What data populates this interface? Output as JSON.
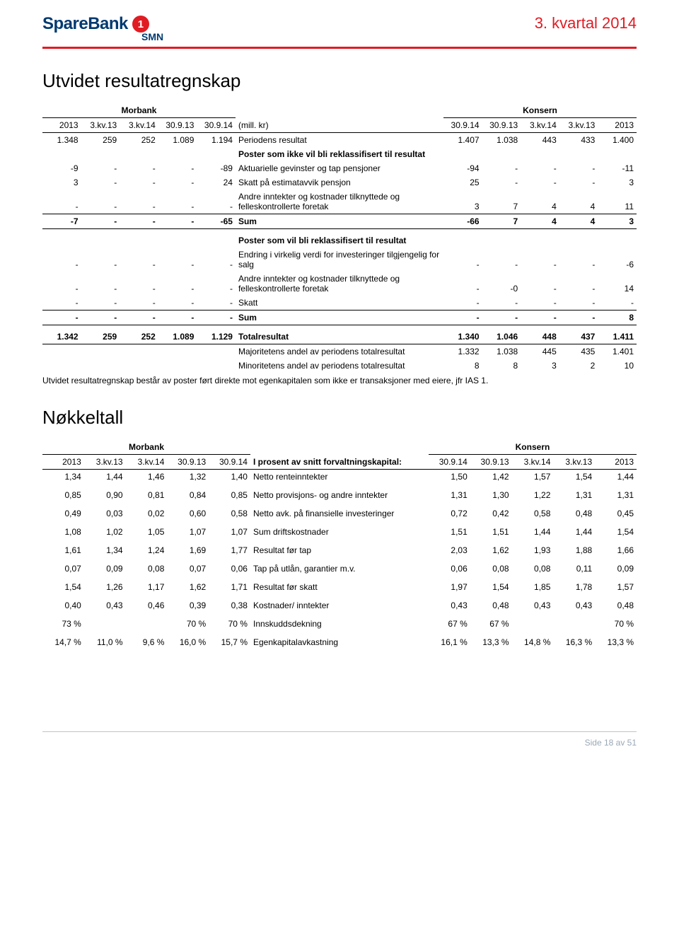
{
  "header": {
    "brand_main": "SpareBank",
    "brand_num": "1",
    "brand_sub": "SMN",
    "report_title": "3. kvartal 2014"
  },
  "section1_title": "Utvidet resultatregnskap",
  "table1": {
    "group_left": "Morbank",
    "group_right": "Konsern",
    "cols_left": [
      "2013",
      "3.kv.13",
      "3.kv.14",
      "30.9.13",
      "30.9.14"
    ],
    "label_col": "(mill. kr)",
    "cols_right": [
      "30.9.14",
      "30.9.13",
      "3.kv.14",
      "3.kv.13",
      "2013"
    ],
    "rows": [
      {
        "l": [
          "1.348",
          "259",
          "252",
          "1.089",
          "1.194"
        ],
        "label": "Periodens resultat",
        "r": [
          "1.407",
          "1.038",
          "443",
          "433",
          "1.400"
        ]
      },
      {
        "l": [
          "",
          "",
          "",
          "",
          ""
        ],
        "label": "Poster som ikke vil bli reklassifisert til resultat",
        "r": [
          "",
          "",
          "",
          "",
          ""
        ],
        "bold": true
      },
      {
        "l": [
          "-9",
          "-",
          "-",
          "-",
          "-89"
        ],
        "label": "Aktuarielle gevinster og tap pensjoner",
        "r": [
          "-94",
          "-",
          "-",
          "-",
          "-11"
        ]
      },
      {
        "l": [
          "3",
          "-",
          "-",
          "-",
          "24"
        ],
        "label": "Skatt på estimatavvik pensjon",
        "r": [
          "25",
          "-",
          "-",
          "-",
          "3"
        ]
      },
      {
        "l": [
          "-",
          "-",
          "-",
          "-",
          "-"
        ],
        "label": "Andre inntekter og kostnader tilknyttede og felleskontrollerte foretak",
        "r": [
          "3",
          "7",
          "4",
          "4",
          "11"
        ]
      },
      {
        "l": [
          "-7",
          "-",
          "-",
          "-",
          "-65"
        ],
        "label": "Sum",
        "r": [
          "-66",
          "7",
          "4",
          "4",
          "3"
        ],
        "bold": true,
        "bt": true,
        "bb": true
      },
      {
        "l": [
          "",
          "",
          "",
          "",
          ""
        ],
        "label": "",
        "r": [
          "",
          "",
          "",
          "",
          ""
        ]
      },
      {
        "l": [
          "",
          "",
          "",
          "",
          ""
        ],
        "label": "Poster som vil bli reklassifisert til resultat",
        "r": [
          "",
          "",
          "",
          "",
          ""
        ],
        "bold": true
      },
      {
        "l": [
          "-",
          "-",
          "-",
          "-",
          "-"
        ],
        "label": "Endring i virkelig verdi for investeringer tilgjengelig for salg",
        "r": [
          "-",
          "-",
          "-",
          "-",
          "-6"
        ]
      },
      {
        "l": [
          "-",
          "-",
          "-",
          "-",
          "-"
        ],
        "label": "Andre inntekter og kostnader tilknyttede og felleskontrollerte foretak",
        "r": [
          "-",
          "-0",
          "-",
          "-",
          "14"
        ]
      },
      {
        "l": [
          "-",
          "-",
          "-",
          "-",
          "-"
        ],
        "label": "Skatt",
        "r": [
          "-",
          "-",
          "-",
          "-",
          "-"
        ]
      },
      {
        "l": [
          "-",
          "-",
          "-",
          "-",
          "-"
        ],
        "label": "Sum",
        "r": [
          "-",
          "-",
          "-",
          "-",
          "8"
        ],
        "bold": true,
        "bt": true,
        "bb": true
      },
      {
        "l": [
          "",
          "",
          "",
          "",
          ""
        ],
        "label": "",
        "r": [
          "",
          "",
          "",
          "",
          ""
        ]
      },
      {
        "l": [
          "1.342",
          "259",
          "252",
          "1.089",
          "1.129"
        ],
        "label": "Totalresultat",
        "r": [
          "1.340",
          "1.046",
          "448",
          "437",
          "1.411"
        ],
        "bold": true,
        "bb": true
      },
      {
        "l": [
          "",
          "",
          "",
          "",
          ""
        ],
        "label": "Majoritetens andel av periodens totalresultat",
        "r": [
          "1.332",
          "1.038",
          "445",
          "435",
          "1.401"
        ]
      },
      {
        "l": [
          "",
          "",
          "",
          "",
          ""
        ],
        "label": "Minoritetens andel av periodens totalresultat",
        "r": [
          "8",
          "8",
          "3",
          "2",
          "10"
        ]
      }
    ]
  },
  "note1": "Utvidet resultatregnskap består av poster ført direkte mot egenkapitalen som ikke er transaksjoner med eiere, jfr IAS 1.",
  "section2_title": "Nøkkeltall",
  "table2": {
    "group_left": "Morbank",
    "group_right": "Konsern",
    "cols_left": [
      "2013",
      "3.kv.13",
      "3.kv.14",
      "30.9.13",
      "30.9.14"
    ],
    "label_col": "I prosent av snitt forvaltningskapital:",
    "cols_right": [
      "30.9.14",
      "30.9.13",
      "3.kv.14",
      "3.kv.13",
      "2013"
    ],
    "rows": [
      {
        "l": [
          "1,34",
          "1,44",
          "1,46",
          "1,32",
          "1,40"
        ],
        "label": "Netto renteinntekter",
        "r": [
          "1,50",
          "1,42",
          "1,57",
          "1,54",
          "1,44"
        ]
      },
      {
        "l": [
          "0,85",
          "0,90",
          "0,81",
          "0,84",
          "0,85"
        ],
        "label": "Netto provisjons- og andre inntekter",
        "r": [
          "1,31",
          "1,30",
          "1,22",
          "1,31",
          "1,31"
        ]
      },
      {
        "l": [
          "0,49",
          "0,03",
          "0,02",
          "0,60",
          "0,58"
        ],
        "label": "Netto avk. på finansielle investeringer",
        "r": [
          "0,72",
          "0,42",
          "0,58",
          "0,48",
          "0,45"
        ]
      },
      {
        "l": [
          "1,08",
          "1,02",
          "1,05",
          "1,07",
          "1,07"
        ],
        "label": "Sum driftskostnader",
        "r": [
          "1,51",
          "1,51",
          "1,44",
          "1,44",
          "1,54"
        ]
      },
      {
        "l": [
          "1,61",
          "1,34",
          "1,24",
          "1,69",
          "1,77"
        ],
        "label": "Resultat før tap",
        "r": [
          "2,03",
          "1,62",
          "1,93",
          "1,88",
          "1,66"
        ]
      },
      {
        "l": [
          "0,07",
          "0,09",
          "0,08",
          "0,07",
          "0,06"
        ],
        "label": "Tap på utlån, garantier m.v.",
        "r": [
          "0,06",
          "0,08",
          "0,08",
          "0,11",
          "0,09"
        ]
      },
      {
        "l": [
          "1,54",
          "1,26",
          "1,17",
          "1,62",
          "1,71"
        ],
        "label": "Resultat før skatt",
        "r": [
          "1,97",
          "1,54",
          "1,85",
          "1,78",
          "1,57"
        ]
      },
      {
        "l": [
          "0,40",
          "0,43",
          "0,46",
          "0,39",
          "0,38"
        ],
        "label": "Kostnader/ inntekter",
        "r": [
          "0,43",
          "0,48",
          "0,43",
          "0,43",
          "0,48"
        ]
      },
      {
        "l": [
          "73 %",
          "",
          "",
          "70 %",
          "70 %"
        ],
        "label": "Innskuddsdekning",
        "r": [
          "67 %",
          "67 %",
          "",
          "",
          "70 %"
        ]
      },
      {
        "l": [
          "14,7 %",
          "11,0 %",
          "9,6 %",
          "16,0 %",
          "15,7 %"
        ],
        "label": "Egenkapitalavkastning",
        "r": [
          "16,1 %",
          "13,3 %",
          "14,8 %",
          "16,3 %",
          "13,3 %"
        ]
      }
    ]
  },
  "footer": "Side 18 av 51"
}
